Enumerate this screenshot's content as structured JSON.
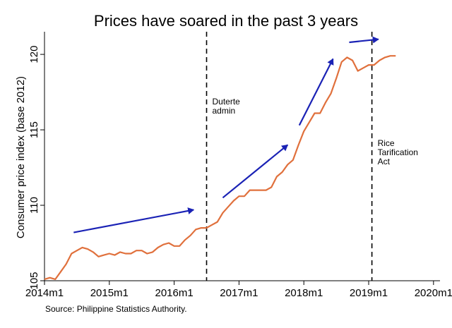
{
  "chart_data": {
    "type": "line",
    "title": "Prices have soared in the past 3 years",
    "ylabel": "Consumer price index (base 2012)",
    "xlabel": "",
    "source": "Source: Philippine Statistics Authority.",
    "x_ticks": [
      {
        "label": "2014m1",
        "t": 2014.0
      },
      {
        "label": "2015m1",
        "t": 2015.0
      },
      {
        "label": "2016m1",
        "t": 2016.0
      },
      {
        "label": "2017m1",
        "t": 2017.0
      },
      {
        "label": "2018m1",
        "t": 2018.0
      },
      {
        "label": "2019m1",
        "t": 2019.0
      },
      {
        "label": "2020m1",
        "t": 2020.0
      }
    ],
    "y_ticks": [
      105,
      110,
      115,
      120
    ],
    "xlim": [
      2014.0,
      2020.1
    ],
    "ylim": [
      105,
      121.5
    ],
    "grid": false,
    "series_color": "#e0703c",
    "arrow_color": "#1a22b5",
    "series": [
      {
        "x": [
          2014.0,
          2014.083,
          2014.167,
          2014.25,
          2014.333,
          2014.417,
          2014.5,
          2014.583,
          2014.667,
          2014.75,
          2014.833,
          2014.917,
          2015.0,
          2015.083,
          2015.167,
          2015.25,
          2015.333,
          2015.417,
          2015.5,
          2015.583,
          2015.667,
          2015.75,
          2015.833,
          2015.917,
          2016.0,
          2016.083,
          2016.167,
          2016.25,
          2016.333,
          2016.417,
          2016.5,
          2016.583,
          2016.667,
          2016.75,
          2016.833,
          2016.917,
          2017.0,
          2017.083,
          2017.167,
          2017.25,
          2017.333,
          2017.417,
          2017.5,
          2017.583,
          2017.667,
          2017.75,
          2017.833,
          2017.917,
          2018.0,
          2018.083,
          2018.167,
          2018.25,
          2018.333,
          2018.417,
          2018.5,
          2018.583,
          2018.667,
          2018.75,
          2018.833,
          2018.917,
          2019.0,
          2019.083,
          2019.167,
          2019.25,
          2019.333,
          2019.417
        ],
        "y": [
          105.1,
          105.2,
          105.1,
          105.6,
          106.1,
          106.8,
          107.0,
          107.2,
          107.1,
          106.9,
          106.6,
          106.7,
          106.8,
          106.7,
          106.9,
          106.8,
          106.8,
          107.0,
          107.0,
          106.8,
          106.9,
          107.2,
          107.4,
          107.5,
          107.3,
          107.3,
          107.7,
          108.0,
          108.4,
          108.5,
          108.5,
          108.7,
          108.9,
          109.5,
          109.9,
          110.3,
          110.6,
          110.6,
          111.0,
          111.0,
          111.0,
          111.0,
          111.2,
          111.9,
          112.2,
          112.7,
          113.0,
          114.0,
          114.9,
          115.5,
          116.1,
          116.1,
          116.8,
          117.4,
          118.4,
          119.5,
          119.8,
          119.6,
          118.9,
          119.1,
          119.3,
          119.3,
          119.6,
          119.8,
          119.9,
          119.9
        ]
      }
    ],
    "annotations": [
      {
        "lines": [
          "Duterte",
          "admin"
        ],
        "x": 2016.5
      },
      {
        "lines": [
          "Rice",
          "Tarification",
          "Act"
        ],
        "x": 2019.05
      }
    ],
    "arrows": [
      {
        "from": [
          2014.45,
          108.2
        ],
        "to": [
          2016.3,
          109.7
        ]
      },
      {
        "from": [
          2016.75,
          110.5
        ],
        "to": [
          2017.75,
          114.0
        ]
      },
      {
        "from": [
          2017.93,
          115.3
        ],
        "to": [
          2018.45,
          119.7
        ]
      },
      {
        "from": [
          2018.7,
          120.8
        ],
        "to": [
          2019.15,
          121.0
        ]
      }
    ]
  }
}
